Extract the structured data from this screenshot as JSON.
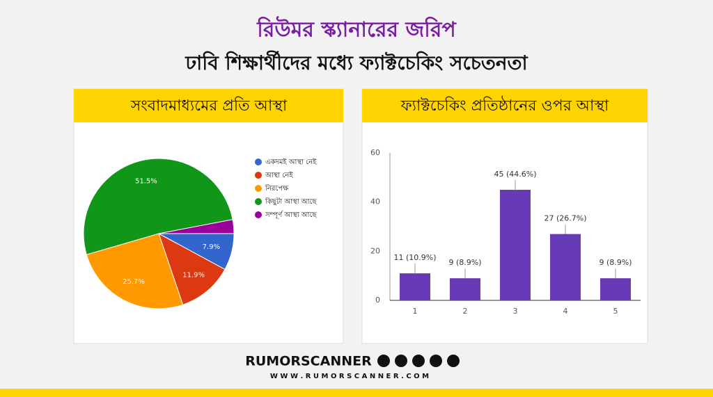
{
  "header": {
    "title": "রিউমর স্ক্যানারের জরিপ",
    "subtitle": "ঢাবি শিক্ষার্থীদের মধ্যে ফ্যাক্টচেকিং সচেতনতা"
  },
  "chart_data": [
    {
      "type": "pie",
      "title": "সংবাদমাধ্যমের প্রতি আস্থা",
      "categories": [
        "একদমই আস্থা নেই",
        "আস্থা নেই",
        "নিরপেক্ষ",
        "কিছুটা আস্থা আছে",
        "সম্পূর্ণ আস্থা আছে"
      ],
      "values": [
        7.9,
        11.9,
        25.7,
        51.5,
        3.0
      ],
      "value_labels": [
        "7.9%",
        "11.9%",
        "25.7%",
        "51.5%",
        null
      ],
      "colors": [
        "#3366cc",
        "#dc3912",
        "#ff9900",
        "#109618",
        "#990099"
      ],
      "legend": "right"
    },
    {
      "type": "bar",
      "title": "ফ্যাক্টচেকিং প্রতিষ্ঠানের ওপর আস্থা",
      "categories": [
        "1",
        "2",
        "3",
        "4",
        "5"
      ],
      "values": [
        11,
        9,
        45,
        27,
        9
      ],
      "value_labels": [
        "11 (10.9%)",
        "9 (8.9%)",
        "45 (44.6%)",
        "27 (26.7%)",
        "9 (8.9%)"
      ],
      "color": "#673ab7",
      "ylim": [
        0,
        60
      ],
      "yticks": [
        0,
        20,
        40,
        60
      ],
      "grid": false
    }
  ],
  "footer": {
    "brand": "RUMORSCANNER",
    "url": "W W W . R U M O R S C A N N E R . C O M"
  }
}
